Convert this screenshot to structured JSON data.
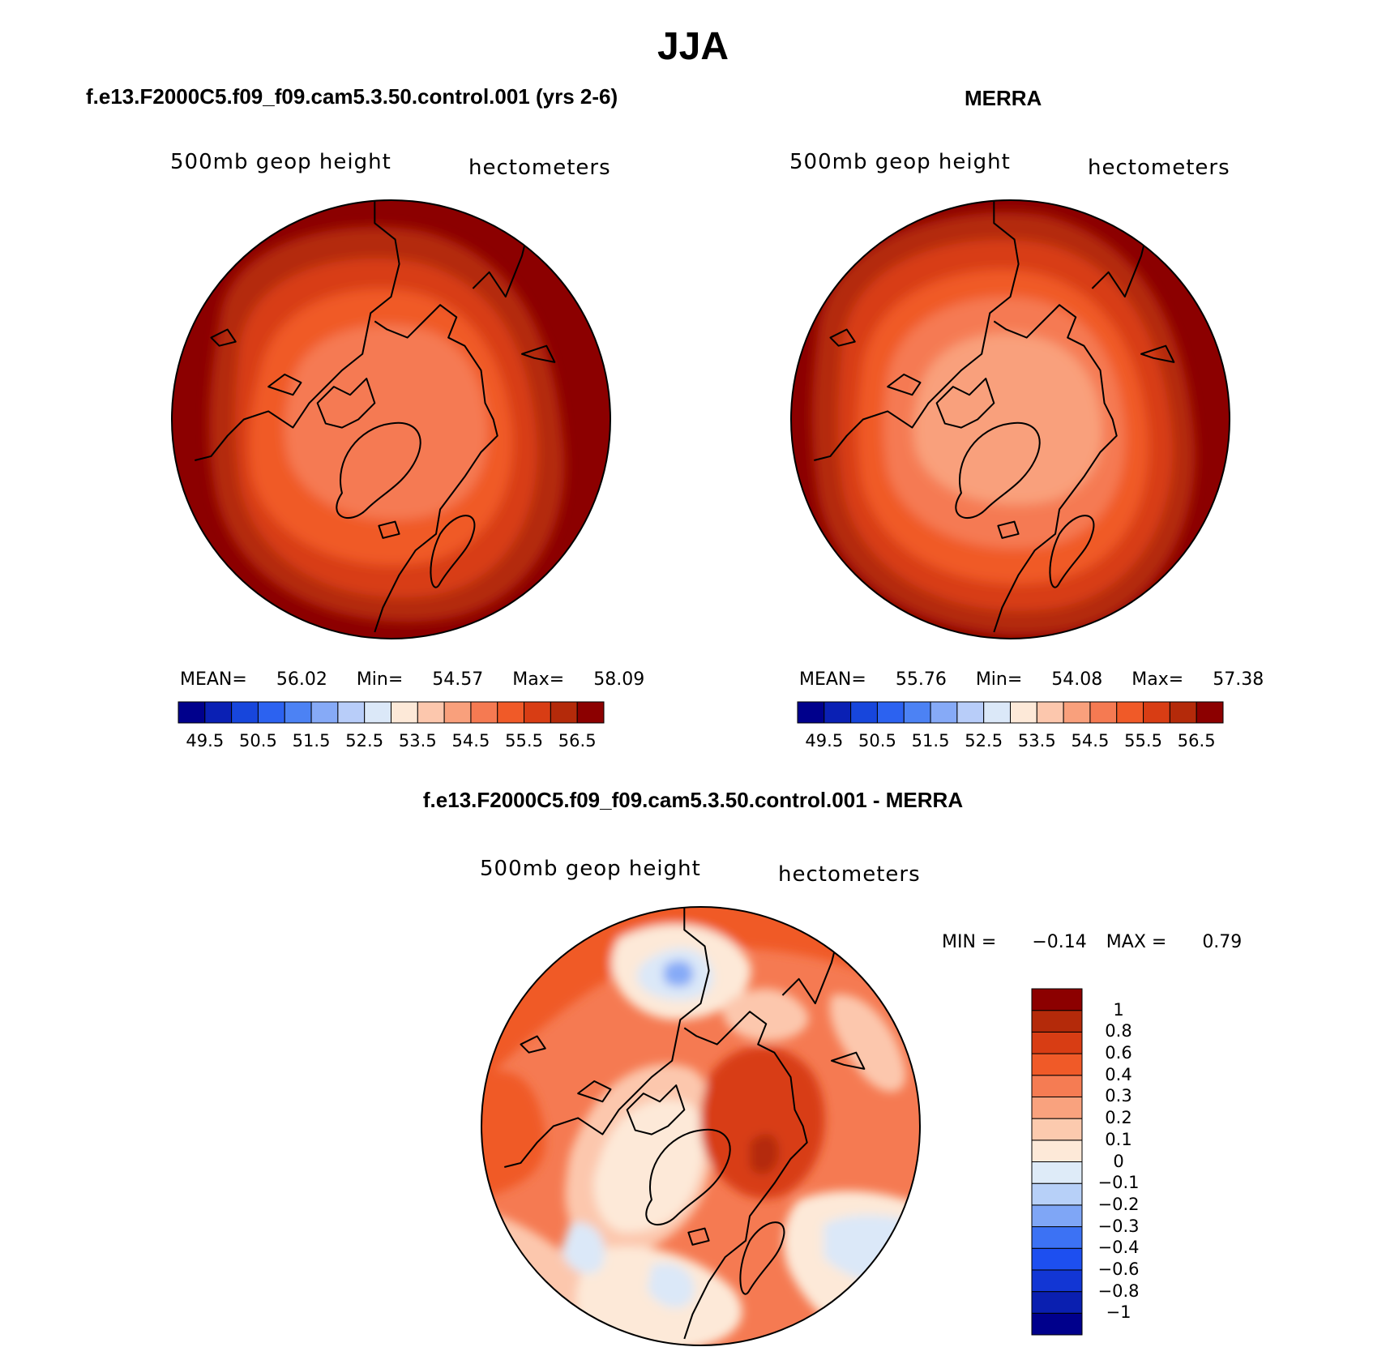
{
  "figure": {
    "season_title": "JJA",
    "panel_left_title": "f.e13.F2000C5.f09_f09.cam5.3.50.control.001 (yrs 2-6)",
    "panel_right_title": "MERRA",
    "panel_diff_title": "f.e13.F2000C5.f09_f09.cam5.3.50.control.001 - MERRA"
  },
  "panels": {
    "left": {
      "variable": "500mb geop height",
      "units": "hectometers",
      "mean_label": "MEAN=",
      "mean_value": "56.02",
      "min_label": "Min=",
      "min_value": "54.57",
      "max_label": "Max=",
      "max_value": "58.09"
    },
    "right": {
      "variable": "500mb geop height",
      "units": "hectometers",
      "mean_label": "MEAN=",
      "mean_value": "55.76",
      "min_label": "Min=",
      "min_value": "54.08",
      "max_label": "Max=",
      "max_value": "57.38"
    },
    "diff": {
      "variable": "500mb geop height",
      "units": "hectometers",
      "min_label": "MIN =",
      "min_value": "−0.14",
      "max_label": "MAX =",
      "max_value": "0.79"
    }
  },
  "colorbar_abs": {
    "colors": [
      "#00008c",
      "#0a20b4",
      "#1746dc",
      "#2c62f0",
      "#4c82f4",
      "#86aaf7",
      "#b8cdf9",
      "#dbe8f8",
      "#fde9d8",
      "#fcc7ad",
      "#f9a07c",
      "#f57a52",
      "#f05a28",
      "#d83d14",
      "#b42a0a",
      "#8c0000"
    ],
    "tick_labels": [
      "49.5",
      "50.5",
      "51.5",
      "52.5",
      "53.5",
      "54.5",
      "55.5",
      "56.5"
    ]
  },
  "colorbar_diff": {
    "colors": [
      "#00008c",
      "#0a1fb0",
      "#1236d4",
      "#1d4ff0",
      "#3c72f4",
      "#7fa6f6",
      "#b7d0f8",
      "#deebf8",
      "#fde9d8",
      "#fccaae",
      "#f9a27e",
      "#f57c53",
      "#f05a28",
      "#d83d14",
      "#b42a0a",
      "#8c0000"
    ],
    "tick_labels": [
      "1",
      "0.8",
      "0.6",
      "0.4",
      "0.3",
      "0.2",
      "0.1",
      "0",
      "−0.1",
      "−0.2",
      "−0.3",
      "−0.4",
      "−0.6",
      "−0.8",
      "−1"
    ]
  },
  "chart_data": [
    {
      "type": "heatmap",
      "title": "f.e13.F2000C5.f09_f09.cam5.3.50.control.001 (yrs 2-6)",
      "variable": "500mb geop height",
      "units": "hectometers",
      "projection": "north polar stereographic",
      "levels": [
        49.5,
        50,
        50.5,
        51,
        51.5,
        52,
        52.5,
        53,
        53.5,
        54,
        54.5,
        55,
        55.5,
        56,
        56.5
      ],
      "mean": 56.02,
      "min": 54.57,
      "max": 58.09
    },
    {
      "type": "heatmap",
      "title": "MERRA",
      "variable": "500mb geop height",
      "units": "hectometers",
      "projection": "north polar stereographic",
      "levels": [
        49.5,
        50,
        50.5,
        51,
        51.5,
        52,
        52.5,
        53,
        53.5,
        54,
        54.5,
        55,
        55.5,
        56,
        56.5
      ],
      "mean": 55.76,
      "min": 54.08,
      "max": 57.38
    },
    {
      "type": "heatmap",
      "title": "f.e13.F2000C5.f09_f09.cam5.3.50.control.001 - MERRA",
      "variable": "500mb geop height",
      "units": "hectometers",
      "projection": "north polar stereographic",
      "levels": [
        -1,
        -0.8,
        -0.6,
        -0.4,
        -0.3,
        -0.2,
        -0.1,
        0,
        0.1,
        0.2,
        0.3,
        0.4,
        0.6,
        0.8,
        1
      ],
      "min": -0.14,
      "max": 0.79
    }
  ]
}
